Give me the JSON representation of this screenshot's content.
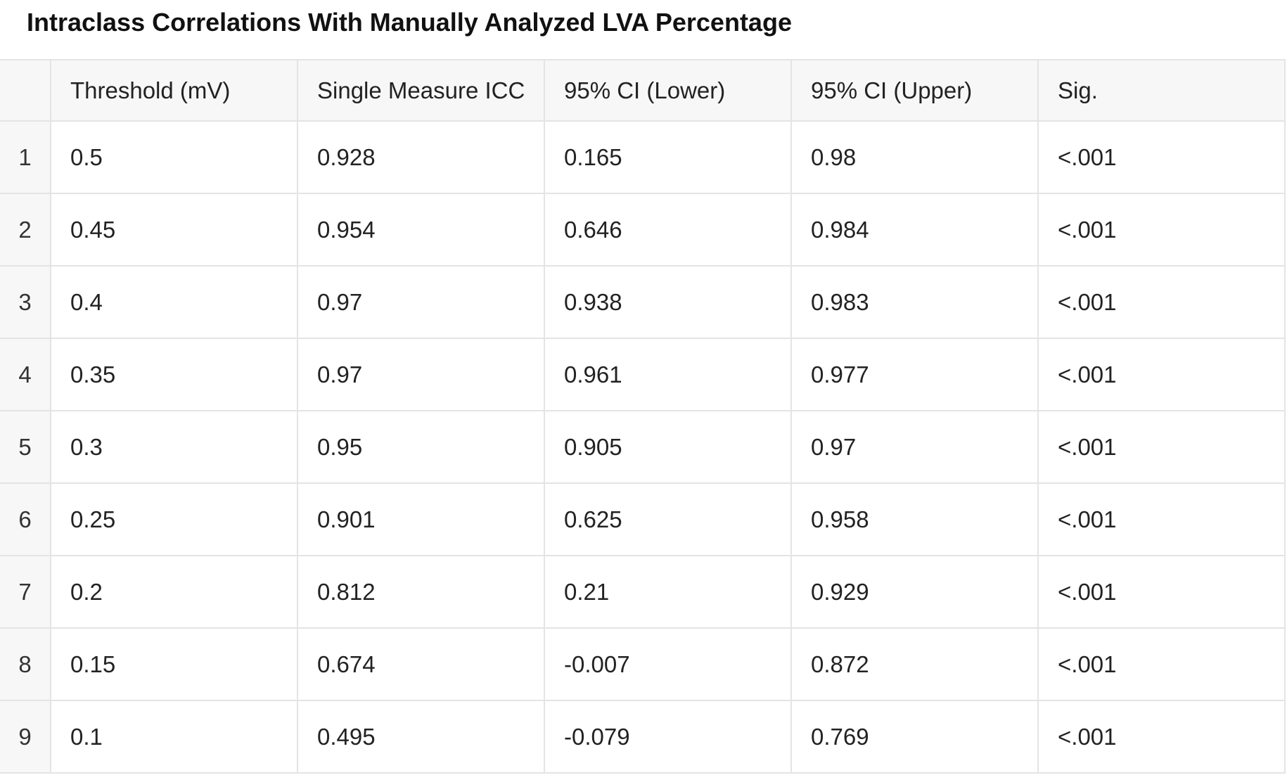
{
  "title": "Intraclass Correlations With Manually Analyzed LVA Percentage",
  "table": {
    "columns": [
      "Threshold (mV)",
      "Single Measure ICC",
      "95% CI (Lower)",
      "95% CI (Upper)",
      "Sig."
    ],
    "rows": [
      {
        "index": "1",
        "cells": [
          "0.5",
          "0.928",
          "0.165",
          "0.98",
          "<.001"
        ]
      },
      {
        "index": "2",
        "cells": [
          "0.45",
          "0.954",
          "0.646",
          "0.984",
          "<.001"
        ]
      },
      {
        "index": "3",
        "cells": [
          "0.4",
          "0.97",
          "0.938",
          "0.983",
          "<.001"
        ]
      },
      {
        "index": "4",
        "cells": [
          "0.35",
          "0.97",
          "0.961",
          "0.977",
          "<.001"
        ]
      },
      {
        "index": "5",
        "cells": [
          "0.3",
          "0.95",
          "0.905",
          "0.97",
          "<.001"
        ]
      },
      {
        "index": "6",
        "cells": [
          "0.25",
          "0.901",
          "0.625",
          "0.958",
          "<.001"
        ]
      },
      {
        "index": "7",
        "cells": [
          "0.2",
          "0.812",
          "0.21",
          "0.929",
          "<.001"
        ]
      },
      {
        "index": "8",
        "cells": [
          "0.15",
          "0.674",
          "-0.007",
          "0.872",
          "<.001"
        ]
      },
      {
        "index": "9",
        "cells": [
          "0.1",
          "0.495",
          "-0.079",
          "0.769",
          "<.001"
        ]
      }
    ]
  },
  "colors": {
    "header_background": "#f7f7f7",
    "grid_line": "#e4e4e4",
    "text": "#222222"
  }
}
